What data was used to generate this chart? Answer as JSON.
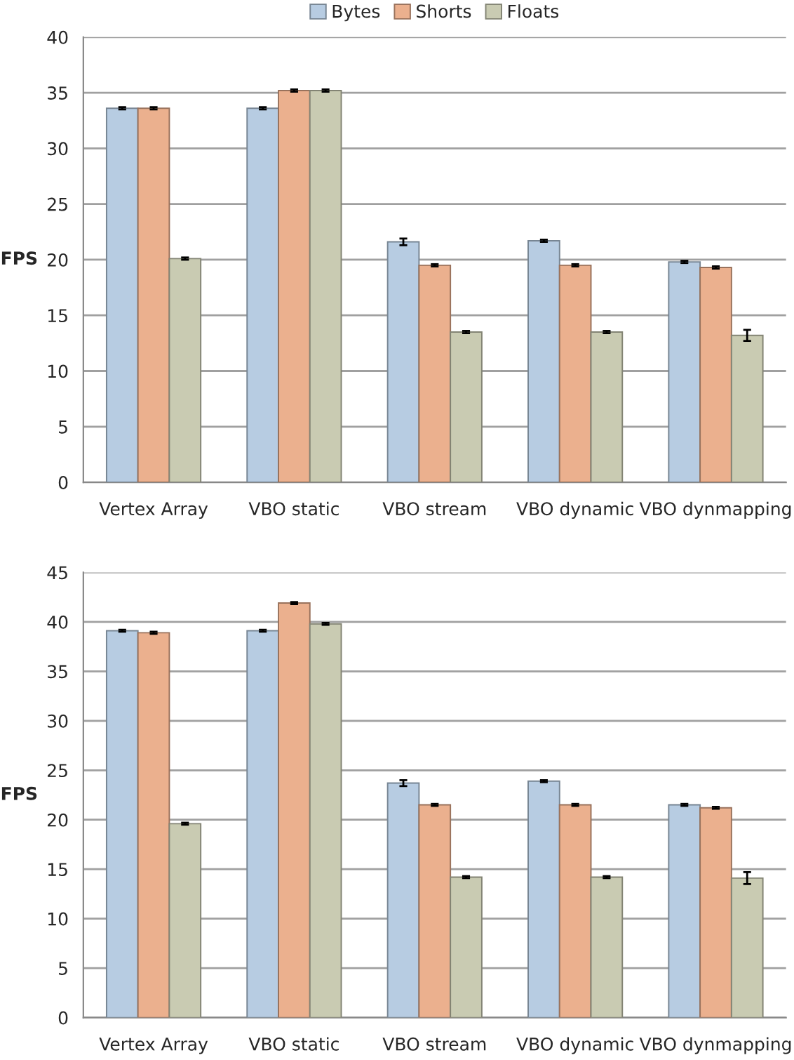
{
  "chart_data": [
    {
      "type": "bar",
      "ylabel": "FPS",
      "categories": [
        "Vertex Array",
        "VBO static",
        "VBO stream",
        "VBO dynamic",
        "VBO dynmapping"
      ],
      "ylim": [
        0,
        40
      ],
      "yticks": [
        0,
        5,
        10,
        15,
        20,
        25,
        30,
        35,
        40
      ],
      "grid": "y",
      "legend": "top",
      "series": [
        {
          "name": "Bytes",
          "color": "#b7cce2",
          "values": [
            33.6,
            33.6,
            21.6,
            21.7,
            19.8
          ],
          "errors": [
            0.1,
            0.1,
            0.3,
            0.1,
            0.1
          ]
        },
        {
          "name": "Shorts",
          "color": "#ebb08e",
          "values": [
            33.6,
            35.2,
            19.5,
            19.5,
            19.3
          ],
          "errors": [
            0.1,
            0.1,
            0.1,
            0.1,
            0.1
          ]
        },
        {
          "name": "Floats",
          "color": "#c9cbb2",
          "values": [
            20.1,
            35.2,
            13.5,
            13.5,
            13.2
          ],
          "errors": [
            0.1,
            0.1,
            0.1,
            0.1,
            0.5
          ]
        }
      ]
    },
    {
      "type": "bar",
      "ylabel": "FPS",
      "categories": [
        "Vertex Array",
        "VBO static",
        "VBO stream",
        "VBO dynamic",
        "VBO dynmapping"
      ],
      "ylim": [
        0,
        45
      ],
      "yticks": [
        0,
        5,
        10,
        15,
        20,
        25,
        30,
        35,
        40,
        45
      ],
      "grid": "y",
      "series": [
        {
          "color": "#b7cce2",
          "values": [
            39.1,
            39.1,
            23.7,
            23.9,
            21.5
          ],
          "errors": [
            0.1,
            0.1,
            0.3,
            0.1,
            0.1
          ]
        },
        {
          "color": "#ebb08e",
          "values": [
            38.9,
            41.9,
            21.5,
            21.5,
            21.2
          ],
          "errors": [
            0.1,
            0.1,
            0.1,
            0.1,
            0.1
          ]
        },
        {
          "color": "#c9cbb2",
          "values": [
            19.6,
            39.8,
            14.2,
            14.2,
            14.1
          ],
          "errors": [
            0.1,
            0.1,
            0.1,
            0.1,
            0.6
          ]
        }
      ]
    }
  ]
}
